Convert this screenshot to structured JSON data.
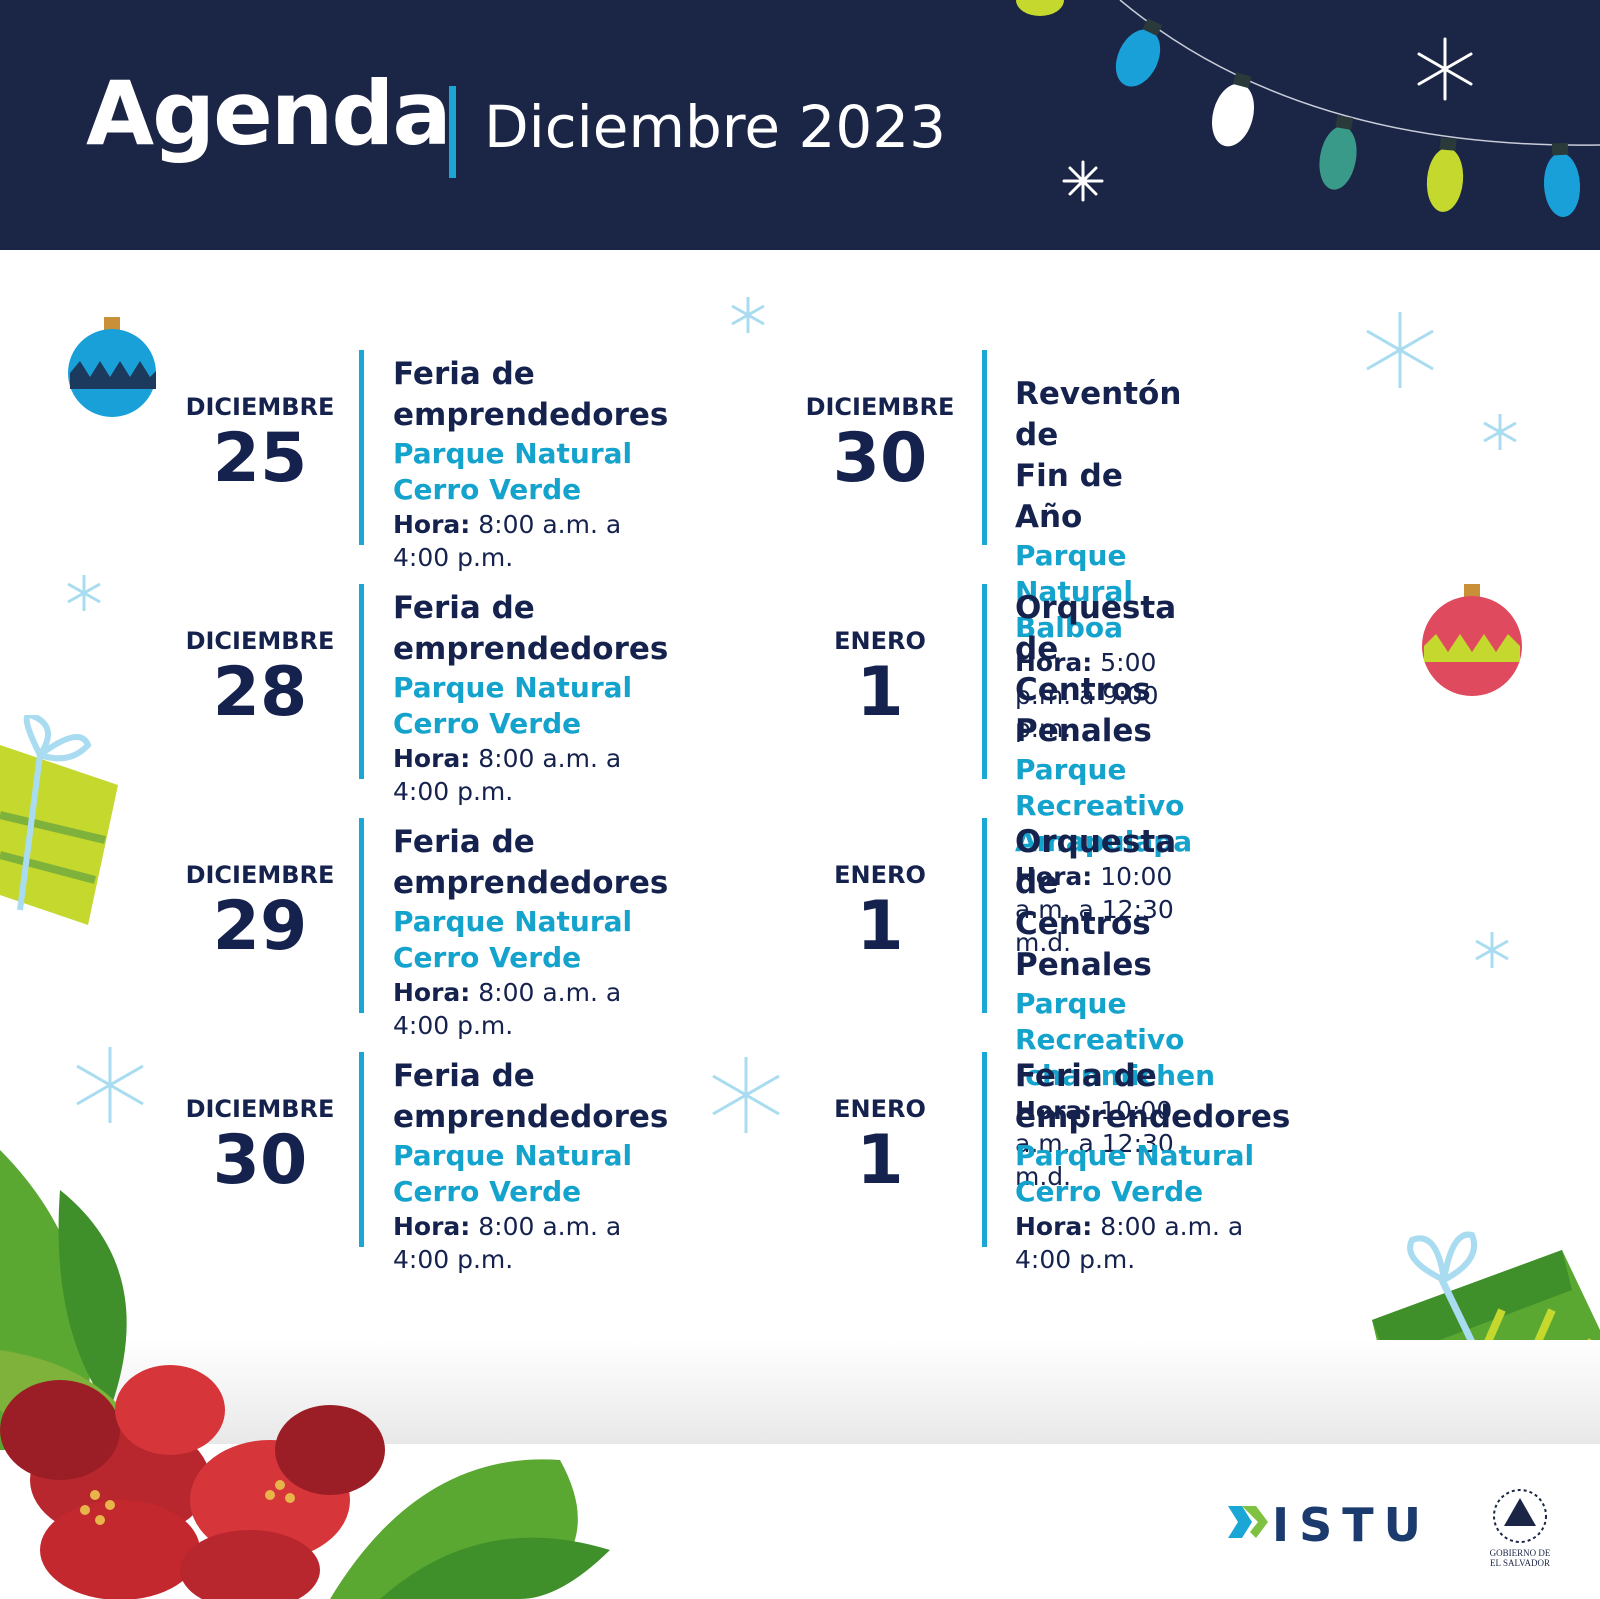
{
  "header": {
    "title": "Agenda",
    "subtitle": "Diciembre 2023"
  },
  "events": [
    {
      "month": "DICIEMBRE",
      "day": "25",
      "title": "Feria de\nemprendedores",
      "place": "Parque Natural\nCerro Verde",
      "time_label": "Hora:",
      "time": " 8:00 a.m. a 4:00 p.m."
    },
    {
      "month": "DICIEMBRE",
      "day": "30",
      "title": "Reventón de\nFin de Año",
      "place": "Parque Natural Balboa",
      "time_label": "Hora:",
      "time": " 5:00 p.m. a 9:00 p.m."
    },
    {
      "month": "DICIEMBRE",
      "day": "28",
      "title": "Feria de\nemprendedores",
      "place": "Parque Natural\nCerro Verde",
      "time_label": "Hora:",
      "time": " 8:00 a.m. a 4:00 p.m."
    },
    {
      "month": "ENERO",
      "day": "1",
      "title": "Orquesta de\nCentros Penales",
      "place": "Parque Recreativo\nAmapulapa",
      "time_label": "Hora:",
      "time": " 10:00 a.m. a 12:30 m.d."
    },
    {
      "month": "DICIEMBRE",
      "day": "29",
      "title": "Feria de\nemprendedores",
      "place": "Parque Natural\nCerro Verde",
      "time_label": "Hora:",
      "time": " 8:00 a.m. a 4:00 p.m."
    },
    {
      "month": "ENERO",
      "day": "1",
      "title": "Orquesta de\nCentros Penales",
      "place": "Parque Recreativo\nIchanmichen",
      "time_label": "Hora:",
      "time": " 10:00 a.m. a 12:30 m.d."
    },
    {
      "month": "DICIEMBRE",
      "day": "30",
      "title": "Feria de\nemprendedores",
      "place": "Parque Natural\nCerro Verde",
      "time_label": "Hora:",
      "time": " 8:00 a.m. a 4:00 p.m."
    },
    {
      "month": "ENERO",
      "day": "1",
      "title": "Feria de\nemprendedores",
      "place": "Parque Natural\nCerro Verde",
      "time_label": "Hora:",
      "time": " 8:00 a.m. a 4:00 p.m."
    }
  ],
  "footer": {
    "logo_text": "ISTU",
    "gov_text": "GOBIERNO DE\nEL SALVADOR"
  },
  "colors": {
    "navy": "#1b2545",
    "accent_blue": "#1aa7d6",
    "text_navy": "#15224d"
  },
  "icons": [
    "christmas-lights-icon",
    "snowflake-icon",
    "ornament-icon",
    "gift-icon",
    "poinsettia-icon",
    "istu-logo-icon",
    "gov-seal-icon"
  ]
}
